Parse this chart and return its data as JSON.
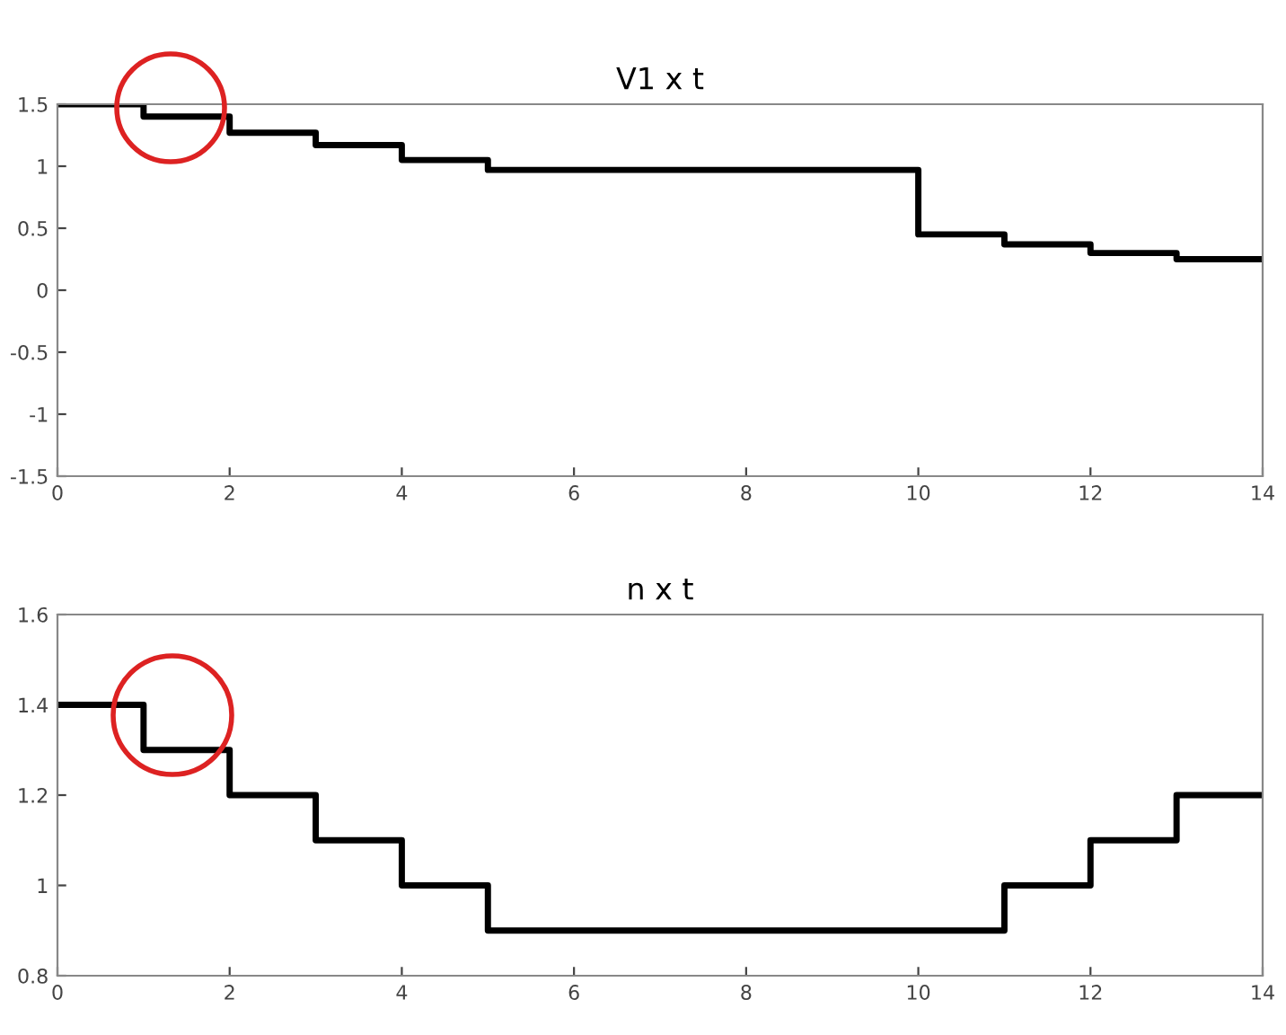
{
  "chart_data": [
    {
      "type": "step",
      "title": "V1 x t",
      "x": [
        0,
        1,
        2,
        3,
        4,
        5,
        6,
        7,
        8,
        9,
        10,
        11,
        12,
        13,
        14
      ],
      "series": [
        {
          "color": "#000000",
          "values": [
            1.5,
            1.4,
            1.27,
            1.17,
            1.05,
            0.97,
            0.97,
            0.97,
            0.97,
            0.97,
            0.45,
            0.37,
            0.3,
            0.25,
            0.25
          ]
        }
      ],
      "xlim": [
        0,
        14
      ],
      "xticks": [
        0,
        2,
        4,
        6,
        8,
        10,
        12,
        14
      ],
      "ylim": [
        -1.5,
        1.5
      ],
      "yticks": [
        -1.5,
        -1,
        -0.5,
        0,
        0.5,
        1,
        1.5
      ],
      "grid": false,
      "legend": false
    },
    {
      "type": "step",
      "title": "n x t",
      "x": [
        0,
        1,
        2,
        3,
        4,
        5,
        6,
        7,
        8,
        9,
        10,
        11,
        12,
        13,
        14
      ],
      "series": [
        {
          "color": "#000000",
          "values": [
            1.4,
            1.3,
            1.2,
            1.1,
            1.0,
            0.9,
            0.9,
            0.9,
            0.9,
            0.9,
            0.9,
            1.0,
            1.1,
            1.2,
            1.2
          ]
        }
      ],
      "xlim": [
        0,
        14
      ],
      "xticks": [
        0,
        2,
        4,
        6,
        8,
        10,
        12,
        14
      ],
      "ylim": [
        0.8,
        1.6
      ],
      "yticks": [
        0.8,
        1,
        1.2,
        1.4,
        1.6
      ],
      "grid": false,
      "legend": false
    }
  ]
}
